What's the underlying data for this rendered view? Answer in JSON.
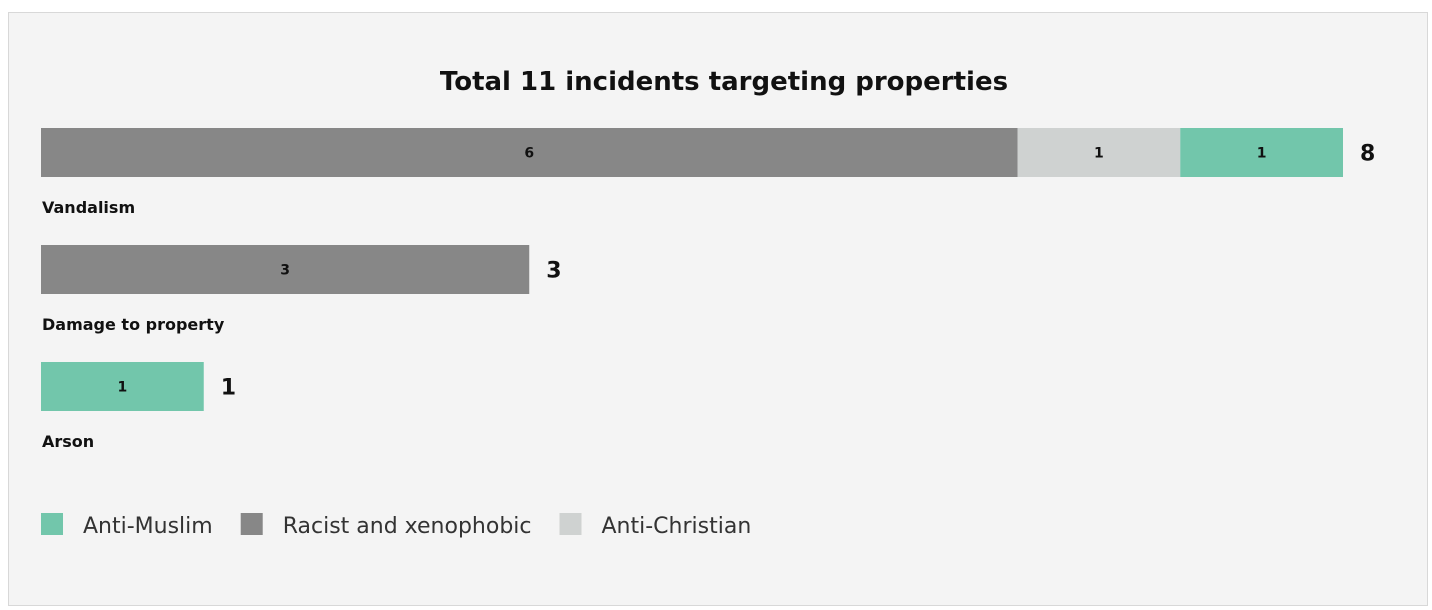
{
  "chart_data": {
    "type": "bar",
    "orientation": "horizontal",
    "stacked": true,
    "title": "Total 11 incidents targeting properties",
    "categories": [
      "Vandalism",
      "Damage to property",
      "Arson"
    ],
    "series": [
      {
        "name": "Racist and xenophobic",
        "color": "#878787",
        "values": [
          6,
          3,
          0
        ]
      },
      {
        "name": "Anti-Christian",
        "color": "#cfd2d1",
        "values": [
          1,
          0,
          0
        ]
      },
      {
        "name": "Anti-Muslim",
        "color": "#72c6ab",
        "values": [
          1,
          0,
          1
        ]
      }
    ],
    "totals": [
      8,
      3,
      1
    ],
    "xlim": [
      0,
      8
    ],
    "grid": false,
    "legend": {
      "placement": "bottom-left",
      "entries": [
        {
          "name": "Anti-Muslim",
          "color": "#72c6ab"
        },
        {
          "name": "Racist and xenophobic",
          "color": "#878787"
        },
        {
          "name": "Anti-Christian",
          "color": "#cfd2d1"
        }
      ]
    }
  }
}
